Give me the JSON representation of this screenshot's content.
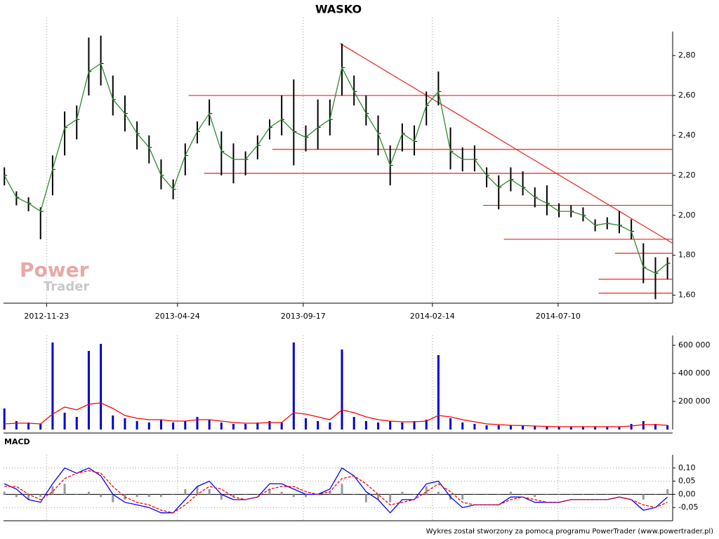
{
  "chart_data": [
    {
      "type": "ohlc",
      "title": "WASKO",
      "x": [
        "2012-10-05",
        "2012-10-19",
        "2012-11-02",
        "2012-11-16",
        "2012-11-30",
        "2012-12-14",
        "2012-12-28",
        "2013-01-11",
        "2013-01-25",
        "2013-02-08",
        "2013-02-22",
        "2013-03-08",
        "2013-03-22",
        "2013-04-05",
        "2013-04-19",
        "2013-05-03",
        "2013-05-17",
        "2013-05-31",
        "2013-06-14",
        "2013-06-28",
        "2013-07-12",
        "2013-07-26",
        "2013-08-09",
        "2013-08-23",
        "2013-09-06",
        "2013-09-20",
        "2013-10-04",
        "2013-10-18",
        "2013-11-01",
        "2013-11-15",
        "2013-11-29",
        "2013-12-13",
        "2013-12-27",
        "2014-01-10",
        "2014-01-24",
        "2014-02-07",
        "2014-02-21",
        "2014-03-07",
        "2014-03-21",
        "2014-04-04",
        "2014-04-18",
        "2014-05-02",
        "2014-05-16",
        "2014-05-30",
        "2014-06-13",
        "2014-06-27",
        "2014-07-11",
        "2014-07-25",
        "2014-08-08",
        "2014-08-22",
        "2014-09-05",
        "2014-09-19",
        "2014-10-03",
        "2014-10-17",
        "2014-10-31",
        "2014-11-14"
      ],
      "high": [
        2.24,
        2.12,
        2.09,
        2.04,
        2.3,
        2.52,
        2.55,
        2.89,
        2.9,
        2.7,
        2.6,
        2.47,
        2.4,
        2.28,
        2.18,
        2.36,
        2.47,
        2.58,
        2.42,
        2.36,
        2.32,
        2.4,
        2.48,
        2.6,
        2.68,
        2.45,
        2.58,
        2.58,
        2.86,
        2.7,
        2.6,
        2.5,
        2.35,
        2.46,
        2.45,
        2.62,
        2.72,
        2.44,
        2.34,
        2.35,
        2.24,
        2.2,
        2.24,
        2.22,
        2.14,
        2.15,
        2.06,
        2.05,
        2.04,
        1.98,
        1.99,
        2.02,
        1.98,
        1.86,
        1.79,
        1.79
      ],
      "low": [
        2.15,
        2.05,
        2.02,
        1.88,
        2.1,
        2.3,
        2.38,
        2.6,
        2.65,
        2.5,
        2.42,
        2.33,
        2.26,
        2.13,
        2.08,
        2.2,
        2.36,
        2.45,
        2.2,
        2.16,
        2.2,
        2.28,
        2.38,
        2.4,
        2.25,
        2.32,
        2.33,
        2.4,
        2.6,
        2.55,
        2.45,
        2.3,
        2.15,
        2.32,
        2.3,
        2.45,
        2.55,
        2.23,
        2.22,
        2.22,
        2.14,
        2.03,
        2.12,
        2.1,
        2.04,
        2.0,
        1.99,
        1.99,
        1.97,
        1.92,
        1.93,
        1.91,
        1.88,
        1.66,
        1.58,
        1.68
      ],
      "close": [
        2.2,
        2.09,
        2.06,
        2.02,
        2.23,
        2.44,
        2.48,
        2.72,
        2.76,
        2.58,
        2.51,
        2.41,
        2.34,
        2.2,
        2.13,
        2.3,
        2.42,
        2.51,
        2.32,
        2.28,
        2.28,
        2.35,
        2.44,
        2.48,
        2.42,
        2.39,
        2.44,
        2.48,
        2.74,
        2.62,
        2.51,
        2.41,
        2.25,
        2.41,
        2.37,
        2.55,
        2.62,
        2.32,
        2.28,
        2.28,
        2.2,
        2.14,
        2.18,
        2.14,
        2.09,
        2.06,
        2.02,
        2.02,
        2.0,
        1.95,
        1.96,
        1.95,
        1.92,
        1.74,
        1.71,
        1.76
      ],
      "bar_color": "#000000",
      "close_color": "#2e8b2e",
      "trend_color": "#ee2222",
      "trend_lines": [
        {
          "x": [
            "2013-05-07",
            "2014-11-20"
          ],
          "y": [
            2.6,
            2.6
          ]
        },
        {
          "x": [
            "2013-08-12",
            "2014-11-20"
          ],
          "y": [
            2.33,
            2.33
          ]
        },
        {
          "x": [
            "2013-05-25",
            "2014-11-20"
          ],
          "y": [
            2.21,
            2.21
          ]
        },
        {
          "x": [
            "2014-04-14",
            "2014-11-20"
          ],
          "y": [
            2.05,
            2.05
          ]
        },
        {
          "x": [
            "2014-05-08",
            "2014-11-20"
          ],
          "y": [
            1.88,
            1.88
          ]
        },
        {
          "x": [
            "2014-09-14",
            "2014-11-20"
          ],
          "y": [
            1.81,
            1.81
          ]
        },
        {
          "x": [
            "2014-08-26",
            "2014-11-20"
          ],
          "y": [
            1.68,
            1.68
          ]
        },
        {
          "x": [
            "2014-08-26",
            "2014-11-20"
          ],
          "y": [
            1.61,
            1.61
          ]
        },
        {
          "x": [
            "2013-10-30",
            "2014-11-20"
          ],
          "y": [
            2.86,
            1.86
          ]
        }
      ],
      "xlim": [
        "2012-10-04",
        "2014-11-20"
      ],
      "xticks": [
        "2012-11-23",
        "2013-04-24",
        "2013-09-17",
        "2014-02-14",
        "2014-07-10"
      ],
      "ylim": [
        1.56,
        2.92
      ],
      "yticks": [
        {
          "value": 1.6,
          "label": "1,60"
        },
        {
          "value": 1.8,
          "label": "1,80"
        },
        {
          "value": 2.0,
          "label": "2,00"
        },
        {
          "value": 2.2,
          "label": "2,20"
        },
        {
          "value": 2.4,
          "label": "2,40"
        },
        {
          "value": 2.6,
          "label": "2,60"
        },
        {
          "value": 2.8,
          "label": "2,80"
        }
      ],
      "grid": "x"
    },
    {
      "type": "bar",
      "x": [
        "2012-10-05",
        "2012-10-19",
        "2012-11-02",
        "2012-11-16",
        "2012-11-30",
        "2012-12-14",
        "2012-12-28",
        "2013-01-11",
        "2013-01-25",
        "2013-02-08",
        "2013-02-22",
        "2013-03-08",
        "2013-03-22",
        "2013-04-05",
        "2013-04-19",
        "2013-05-03",
        "2013-05-17",
        "2013-05-31",
        "2013-06-14",
        "2013-06-28",
        "2013-07-12",
        "2013-07-26",
        "2013-08-09",
        "2013-08-23",
        "2013-09-06",
        "2013-09-20",
        "2013-10-04",
        "2013-10-18",
        "2013-11-01",
        "2013-11-15",
        "2013-11-29",
        "2013-12-13",
        "2013-12-27",
        "2014-01-10",
        "2014-01-24",
        "2014-02-07",
        "2014-02-21",
        "2014-03-07",
        "2014-03-21",
        "2014-04-04",
        "2014-04-18",
        "2014-05-02",
        "2014-05-16",
        "2014-05-30",
        "2014-06-13",
        "2014-06-27",
        "2014-07-11",
        "2014-07-25",
        "2014-08-08",
        "2014-08-22",
        "2014-09-05",
        "2014-09-19",
        "2014-10-03",
        "2014-10-17",
        "2014-10-31",
        "2014-11-14"
      ],
      "series": [
        {
          "type": "bar",
          "color": "#0000cc",
          "values": [
            150000,
            60000,
            50000,
            40000,
            620000,
            120000,
            90000,
            560000,
            610000,
            100000,
            80000,
            60000,
            50000,
            70000,
            50000,
            60000,
            90000,
            70000,
            50000,
            40000,
            40000,
            50000,
            60000,
            50000,
            620000,
            80000,
            60000,
            50000,
            570000,
            90000,
            60000,
            50000,
            60000,
            50000,
            60000,
            70000,
            530000,
            80000,
            50000,
            40000,
            30000,
            30000,
            30000,
            25000,
            25000,
            20000,
            20000,
            20000,
            20000,
            20000,
            20000,
            20000,
            40000,
            60000,
            40000,
            30000
          ]
        },
        {
          "type": "line",
          "color": "#ff0000",
          "values": [
            40000,
            45000,
            45000,
            40000,
            110000,
            160000,
            140000,
            180000,
            190000,
            150000,
            100000,
            80000,
            70000,
            70000,
            60000,
            60000,
            70000,
            70000,
            60000,
            50000,
            45000,
            45000,
            50000,
            50000,
            120000,
            110000,
            90000,
            70000,
            140000,
            120000,
            90000,
            70000,
            60000,
            55000,
            55000,
            60000,
            100000,
            90000,
            70000,
            55000,
            40000,
            35000,
            30000,
            28000,
            25000,
            22000,
            20000,
            20000,
            20000,
            20000,
            20000,
            20000,
            25000,
            35000,
            35000,
            30000
          ]
        }
      ],
      "xlim": [
        "2012-10-04",
        "2014-11-20"
      ],
      "ylim": [
        0,
        670000
      ],
      "yticks": [
        {
          "value": 200000,
          "label": "200 000"
        },
        {
          "value": 400000,
          "label": "400 000"
        },
        {
          "value": 600000,
          "label": "600 000"
        }
      ],
      "grid": "x"
    },
    {
      "type": "line",
      "title": "MACD",
      "x": [
        "2012-10-05",
        "2012-10-19",
        "2012-11-02",
        "2012-11-16",
        "2012-11-30",
        "2012-12-14",
        "2012-12-28",
        "2013-01-11",
        "2013-01-25",
        "2013-02-08",
        "2013-02-22",
        "2013-03-08",
        "2013-03-22",
        "2013-04-05",
        "2013-04-19",
        "2013-05-03",
        "2013-05-17",
        "2013-05-31",
        "2013-06-14",
        "2013-06-28",
        "2013-07-12",
        "2013-07-26",
        "2013-08-09",
        "2013-08-23",
        "2013-09-06",
        "2013-09-20",
        "2013-10-04",
        "2013-10-18",
        "2013-11-01",
        "2013-11-15",
        "2013-11-29",
        "2013-12-13",
        "2013-12-27",
        "2014-01-10",
        "2014-01-24",
        "2014-02-07",
        "2014-02-21",
        "2014-03-07",
        "2014-03-21",
        "2014-04-04",
        "2014-04-18",
        "2014-05-02",
        "2014-05-16",
        "2014-05-30",
        "2014-06-13",
        "2014-06-27",
        "2014-07-11",
        "2014-07-25",
        "2014-08-08",
        "2014-08-22",
        "2014-09-05",
        "2014-09-19",
        "2014-10-03",
        "2014-10-17",
        "2014-10-31",
        "2014-11-14"
      ],
      "series": [
        {
          "type": "bar",
          "color": "#999999",
          "values": [
            0.01,
            -0.01,
            -0.02,
            -0.01,
            0.03,
            0.04,
            0,
            0.01,
            -0.01,
            -0.03,
            -0.02,
            -0.01,
            -0.01,
            -0.01,
            0,
            0.02,
            0.03,
            0.02,
            -0.02,
            -0.01,
            0,
            0,
            0.02,
            0.01,
            -0.01,
            -0.01,
            0,
            0.01,
            0.04,
            0,
            -0.03,
            -0.02,
            -0.03,
            0.01,
            0,
            0.03,
            0.01,
            -0.02,
            -0.02,
            0,
            0,
            0,
            0.01,
            0,
            -0.01,
            0,
            0,
            0,
            0,
            0,
            0,
            0,
            0,
            -0.02,
            0,
            0.02
          ]
        },
        {
          "type": "line",
          "color": "#0000ff",
          "values": [
            0.04,
            0.02,
            -0.02,
            -0.03,
            0.04,
            0.1,
            0.08,
            0.1,
            0.07,
            0.0,
            -0.03,
            -0.04,
            -0.05,
            -0.07,
            -0.07,
            -0.02,
            0.03,
            0.05,
            0.0,
            -0.02,
            -0.02,
            -0.01,
            0.04,
            0.04,
            0.02,
            0.0,
            0.0,
            0.02,
            0.1,
            0.07,
            0.01,
            -0.02,
            -0.07,
            -0.02,
            -0.02,
            0.04,
            0.05,
            -0.01,
            -0.05,
            -0.04,
            -0.04,
            -0.04,
            -0.01,
            -0.01,
            -0.03,
            -0.03,
            -0.03,
            -0.02,
            -0.02,
            -0.02,
            -0.02,
            -0.01,
            -0.02,
            -0.06,
            -0.05,
            -0.01
          ]
        },
        {
          "type": "line",
          "color": "#ff0000",
          "dash": true,
          "values": [
            0.03,
            0.03,
            0.0,
            -0.02,
            0.01,
            0.06,
            0.08,
            0.09,
            0.08,
            0.03,
            -0.01,
            -0.03,
            -0.04,
            -0.06,
            -0.07,
            -0.04,
            0.0,
            0.03,
            0.02,
            -0.01,
            -0.02,
            -0.01,
            0.02,
            0.03,
            0.03,
            0.01,
            0.0,
            0.01,
            0.06,
            0.07,
            0.04,
            0.0,
            -0.04,
            -0.03,
            -0.02,
            0.01,
            0.04,
            0.01,
            -0.03,
            -0.04,
            -0.04,
            -0.04,
            -0.02,
            -0.01,
            -0.02,
            -0.03,
            -0.03,
            -0.02,
            -0.02,
            -0.02,
            -0.02,
            -0.01,
            -0.02,
            -0.04,
            -0.05,
            -0.03
          ]
        }
      ],
      "xlim": [
        "2012-10-04",
        "2014-11-20"
      ],
      "ylim": [
        -0.1,
        0.15
      ],
      "yticks": [
        {
          "value": -0.05,
          "label": "-0,05"
        },
        {
          "value": 0,
          "label": "0,00"
        },
        {
          "value": 0.05,
          "label": "0,05"
        },
        {
          "value": 0.1,
          "label": "0,10"
        }
      ],
      "grid": "both",
      "zero_line": true
    }
  ],
  "watermark": [
    "Power",
    "Trader"
  ],
  "footer": "Wykres został stworzony za pomocą programu PowerTrader (www.powertrader.pl)"
}
